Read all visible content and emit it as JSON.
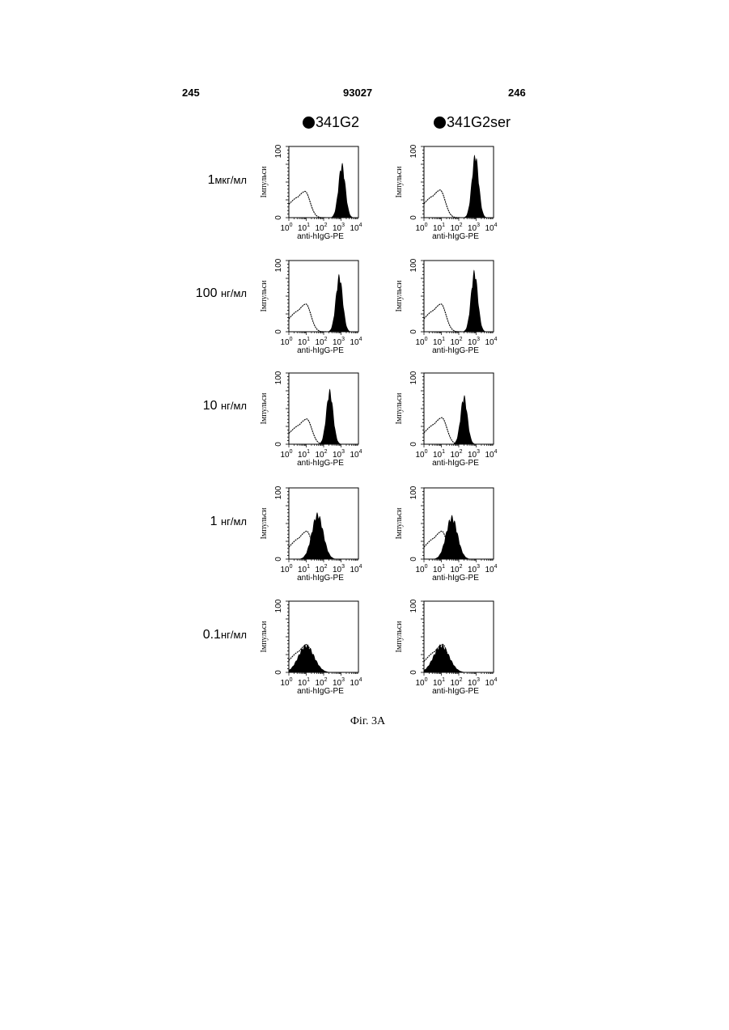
{
  "header": {
    "left_page": "245",
    "patent_number": "93027",
    "right_page": "246"
  },
  "columns": [
    {
      "label": "341G2",
      "marker": "filled-circle"
    },
    {
      "label": "341G2ser",
      "marker": "filled-circle"
    }
  ],
  "rows": [
    {
      "conc_num": "1",
      "conc_unit": "мкг/мл"
    },
    {
      "conc_num": "100 ",
      "conc_unit": "нг/мл"
    },
    {
      "conc_num": "10 ",
      "conc_unit": "нг/мл"
    },
    {
      "conc_num": "1 ",
      "conc_unit": "нг/мл"
    },
    {
      "conc_num": "0.1",
      "conc_unit": "нг/мл"
    }
  ],
  "caption": "Фіг. 3А",
  "chart_data": {
    "type": "area",
    "layout": "grid 5 rows × 2 columns of flow-cytometry histograms",
    "xlabel": "anti-hIgG-PE",
    "ylabel": "Імпульси",
    "x_scale": "log",
    "xlim": [
      1,
      10000
    ],
    "x_ticks": [
      {
        "base": "10",
        "exp": "0"
      },
      {
        "base": "10",
        "exp": "1"
      },
      {
        "base": "10",
        "exp": "2"
      },
      {
        "base": "10",
        "exp": "3"
      },
      {
        "base": "10",
        "exp": "4"
      }
    ],
    "ylim": [
      0,
      100
    ],
    "y_ticks": [
      "0",
      "100"
    ],
    "colors": {
      "filled": "#000000",
      "open": "#000000"
    },
    "panels": [
      {
        "row": "1мкг/мл",
        "column": "341G2",
        "open_peak_log10": 0.9,
        "open_peak_counts": 40,
        "filled_peak_log10": 3.05,
        "filled_peak_counts": 78
      },
      {
        "row": "1мкг/мл",
        "column": "341G2ser",
        "open_peak_log10": 0.9,
        "open_peak_counts": 42,
        "filled_peak_log10": 2.95,
        "filled_peak_counts": 92
      },
      {
        "row": "100 нг/мл",
        "column": "341G2",
        "open_peak_log10": 0.95,
        "open_peak_counts": 42,
        "filled_peak_log10": 2.9,
        "filled_peak_counts": 82
      },
      {
        "row": "100 нг/мл",
        "column": "341G2ser",
        "open_peak_log10": 0.95,
        "open_peak_counts": 42,
        "filled_peak_log10": 2.9,
        "filled_peak_counts": 88
      },
      {
        "row": "10 нг/мл",
        "column": "341G2",
        "open_peak_log10": 1.0,
        "open_peak_counts": 38,
        "filled_peak_log10": 2.35,
        "filled_peak_counts": 78
      },
      {
        "row": "10 нг/мл",
        "column": "341G2ser",
        "open_peak_log10": 1.0,
        "open_peak_counts": 40,
        "filled_peak_log10": 2.3,
        "filled_peak_counts": 70
      },
      {
        "row": "1 нг/мл",
        "column": "341G2",
        "open_peak_log10": 1.0,
        "open_peak_counts": 42,
        "filled_peak_log10": 1.65,
        "filled_peak_counts": 66
      },
      {
        "row": "1 нг/мл",
        "column": "341G2ser",
        "open_peak_log10": 1.0,
        "open_peak_counts": 42,
        "filled_peak_log10": 1.6,
        "filled_peak_counts": 62
      },
      {
        "row": "0.1нг/мл",
        "column": "341G2",
        "open_peak_log10": 1.0,
        "open_peak_counts": 42,
        "filled_peak_log10": 1.0,
        "filled_peak_counts": 40
      },
      {
        "row": "0.1нг/мл",
        "column": "341G2ser",
        "open_peak_log10": 1.05,
        "open_peak_counts": 42,
        "filled_peak_log10": 1.0,
        "filled_peak_counts": 40
      }
    ]
  }
}
